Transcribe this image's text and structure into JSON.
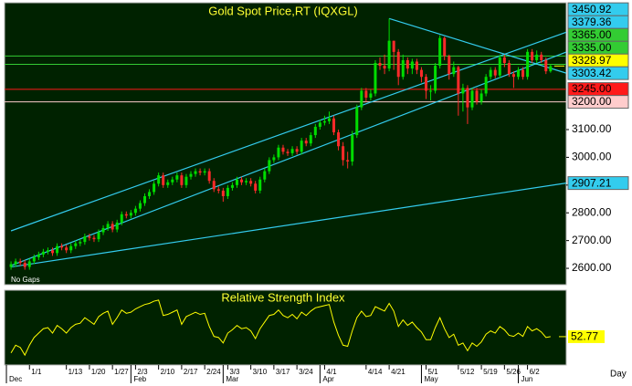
{
  "chart_data": [
    {
      "type": "candlestick",
      "title": "Gold Spot Price,RT (IQXGL)",
      "note": "No Gaps",
      "xlabel": "Day",
      "x": [
        0,
        1,
        2,
        3,
        4,
        5,
        6,
        7,
        8,
        9,
        10,
        11,
        12,
        13,
        14,
        15,
        16,
        17,
        18,
        19,
        20,
        21,
        22,
        23,
        24,
        25,
        26,
        27,
        28,
        29,
        30,
        31,
        32,
        33,
        34,
        35,
        36,
        37,
        38,
        39,
        40,
        41,
        42,
        43,
        44,
        45,
        46,
        47,
        48,
        49,
        50,
        51,
        52,
        53,
        54,
        55,
        56,
        57,
        58,
        59,
        60,
        61,
        62,
        63,
        64,
        65,
        66,
        67,
        68,
        69,
        70,
        71,
        72,
        73,
        74,
        75,
        76,
        77,
        78,
        79,
        80,
        81,
        82,
        83,
        84,
        85,
        86,
        87,
        88,
        89,
        90,
        91,
        92,
        93,
        94,
        95,
        96,
        97,
        98,
        99,
        100,
        101,
        102,
        103,
        104,
        105,
        106,
        107,
        108,
        109,
        110,
        111,
        112,
        113,
        114,
        115,
        116,
        117
      ],
      "open": [
        2605,
        2615,
        2625,
        2620,
        2605,
        2625,
        2640,
        2650,
        2660,
        2665,
        2655,
        2680,
        2675,
        2665,
        2680,
        2690,
        2695,
        2715,
        2710,
        2705,
        2730,
        2745,
        2760,
        2740,
        2765,
        2795,
        2790,
        2800,
        2815,
        2835,
        2860,
        2875,
        2905,
        2935,
        2900,
        2910,
        2920,
        2935,
        2900,
        2930,
        2940,
        2950,
        2945,
        2950,
        2915,
        2885,
        2880,
        2860,
        2890,
        2900,
        2920,
        2910,
        2915,
        2905,
        2880,
        2920,
        2950,
        2990,
        3000,
        3035,
        3020,
        3015,
        3030,
        3020,
        3060,
        3050,
        3080,
        3110,
        3125,
        3130,
        3140,
        3090,
        3040,
        2990,
        2985,
        3080,
        3180,
        3240,
        3215,
        3230,
        3340,
        3330,
        3320,
        3420,
        3380,
        3290,
        3350,
        3320,
        3345,
        3315,
        3290,
        3240,
        3240,
        3330,
        3430,
        3365,
        3300,
        3325,
        3230,
        3250,
        3180,
        3240,
        3200,
        3230,
        3290,
        3315,
        3295,
        3360,
        3340,
        3300,
        3290,
        3315,
        3290,
        3380,
        3350,
        3370,
        3350,
        3310
      ],
      "high": [
        2625,
        2635,
        2635,
        2630,
        2635,
        2650,
        2660,
        2670,
        2675,
        2675,
        2690,
        2690,
        2685,
        2690,
        2700,
        2705,
        2725,
        2725,
        2720,
        2740,
        2755,
        2770,
        2770,
        2775,
        2805,
        2805,
        2810,
        2825,
        2845,
        2870,
        2885,
        2915,
        2945,
        2945,
        2920,
        2930,
        2945,
        2945,
        2940,
        2950,
        2960,
        2960,
        2960,
        2960,
        2925,
        2895,
        2890,
        2900,
        2910,
        2930,
        2930,
        2925,
        2925,
        2915,
        2930,
        2960,
        3000,
        3010,
        3045,
        3045,
        3030,
        3040,
        3040,
        3070,
        3070,
        3090,
        3120,
        3135,
        3150,
        3165,
        3150,
        3100,
        3055,
        3020,
        3095,
        3190,
        3250,
        3250,
        3245,
        3350,
        3360,
        3370,
        3500,
        3420,
        3390,
        3370,
        3360,
        3355,
        3355,
        3325,
        3300,
        3260,
        3340,
        3440,
        3435,
        3370,
        3345,
        3330,
        3265,
        3260,
        3250,
        3250,
        3245,
        3300,
        3325,
        3325,
        3370,
        3370,
        3350,
        3310,
        3325,
        3325,
        3390,
        3390,
        3385,
        3380,
        3360,
        3335
      ],
      "low": [
        2595,
        2605,
        2610,
        2595,
        2595,
        2615,
        2630,
        2640,
        2650,
        2645,
        2645,
        2665,
        2655,
        2655,
        2670,
        2680,
        2685,
        2700,
        2695,
        2695,
        2720,
        2735,
        2730,
        2730,
        2755,
        2780,
        2780,
        2790,
        2805,
        2825,
        2850,
        2865,
        2895,
        2890,
        2890,
        2900,
        2910,
        2890,
        2890,
        2920,
        2930,
        2935,
        2935,
        2905,
        2875,
        2870,
        2840,
        2850,
        2880,
        2890,
        2900,
        2900,
        2895,
        2870,
        2870,
        2910,
        2940,
        2980,
        2990,
        3010,
        3005,
        3005,
        3010,
        3010,
        3040,
        3040,
        3070,
        3100,
        3115,
        3120,
        3080,
        3025,
        2970,
        2960,
        2970,
        3070,
        3170,
        3200,
        3205,
        3220,
        3315,
        3300,
        3310,
        3315,
        3260,
        3280,
        3300,
        3300,
        3300,
        3270,
        3210,
        3205,
        3230,
        3320,
        3350,
        3280,
        3290,
        3150,
        3165,
        3120,
        3170,
        3190,
        3190,
        3220,
        3280,
        3285,
        3285,
        3325,
        3290,
        3250,
        3280,
        3280,
        3280,
        3340,
        3340,
        3340,
        3300,
        3305
      ],
      "close": [
        2615,
        2625,
        2620,
        2605,
        2625,
        2640,
        2650,
        2660,
        2665,
        2655,
        2680,
        2675,
        2665,
        2680,
        2690,
        2695,
        2715,
        2710,
        2705,
        2730,
        2745,
        2760,
        2740,
        2765,
        2795,
        2790,
        2800,
        2815,
        2835,
        2860,
        2875,
        2905,
        2935,
        2900,
        2910,
        2920,
        2935,
        2900,
        2930,
        2940,
        2950,
        2945,
        2950,
        2915,
        2885,
        2880,
        2860,
        2890,
        2900,
        2920,
        2910,
        2915,
        2905,
        2880,
        2920,
        2950,
        2990,
        3000,
        3035,
        3020,
        3015,
        3030,
        3020,
        3060,
        3050,
        3080,
        3110,
        3125,
        3130,
        3140,
        3090,
        3040,
        2990,
        2985,
        3080,
        3180,
        3240,
        3215,
        3230,
        3340,
        3330,
        3320,
        3420,
        3380,
        3290,
        3350,
        3320,
        3345,
        3315,
        3290,
        3240,
        3240,
        3330,
        3430,
        3365,
        3300,
        3325,
        3230,
        3250,
        3180,
        3240,
        3200,
        3230,
        3290,
        3315,
        3295,
        3360,
        3340,
        3300,
        3290,
        3315,
        3290,
        3380,
        3350,
        3370,
        3350,
        3310,
        3328.97
      ],
      "up_color": "#00dd00",
      "down_color": "#ff2a2a",
      "last_color": "#ffff00",
      "xlim": [
        -1.4,
        120.4
      ],
      "ylim": [
        2541,
        3557
      ],
      "yticks": [
        {
          "value": 2600,
          "label": "2600.00"
        },
        {
          "value": 2700,
          "label": "2700.00"
        },
        {
          "value": 2800,
          "label": "2800.00"
        },
        {
          "value": 2900,
          "label": "2900.00"
        },
        {
          "value": 3000,
          "label": "3000.00"
        },
        {
          "value": 3100,
          "label": "3100.00"
        }
      ],
      "xticks": [
        {
          "value": 4,
          "label": "1/1"
        },
        {
          "value": 12,
          "label": "1/13"
        },
        {
          "value": 17,
          "label": "1/20"
        },
        {
          "value": 22,
          "label": "1/27"
        },
        {
          "value": 27,
          "label": "2/3"
        },
        {
          "value": 32,
          "label": "2/10"
        },
        {
          "value": 37,
          "label": "2/17"
        },
        {
          "value": 42,
          "label": "2/24"
        },
        {
          "value": 47,
          "label": "3/3"
        },
        {
          "value": 52,
          "label": "3/10"
        },
        {
          "value": 57,
          "label": "3/17"
        },
        {
          "value": 62,
          "label": "3/24"
        },
        {
          "value": 68,
          "label": "4/1"
        },
        {
          "value": 77,
          "label": "4/14"
        },
        {
          "value": 82,
          "label": "4/21"
        },
        {
          "value": 90,
          "label": "5/1"
        },
        {
          "value": 97,
          "label": "5/12"
        },
        {
          "value": 102,
          "label": "5/19"
        },
        {
          "value": 107,
          "label": "5/26"
        },
        {
          "value": 112,
          "label": "6/2"
        }
      ],
      "month_ticks": [
        {
          "value": -1,
          "label": "Dec"
        },
        {
          "value": 26,
          "label": "Feb"
        },
        {
          "value": 46,
          "label": "Mar"
        },
        {
          "value": 67,
          "label": "Apr"
        },
        {
          "value": 89,
          "label": "May"
        },
        {
          "value": 110,
          "label": "Jun"
        }
      ],
      "levels": [
        {
          "value": 3365,
          "label": "3365.00",
          "color": "#33cc33"
        },
        {
          "value": 3335,
          "label": "3335.00",
          "color": "#33cc33"
        },
        {
          "value": 3245,
          "label": "3245.00",
          "color": "#ff1a1a"
        },
        {
          "value": 3200,
          "label": "3200.00",
          "color": "#ffcccc"
        }
      ],
      "trendline_color": "#33ccee",
      "trendlines": [
        {
          "x": [
            0,
            120.4
          ],
          "y": [
            2735,
            3450.92
          ]
        },
        {
          "x": [
            0,
            120.4
          ],
          "y": [
            2610,
            3379.36
          ]
        },
        {
          "x": [
            82,
            120.4
          ],
          "y": [
            3500,
            3303.42
          ]
        },
        {
          "x": [
            0,
            120.4
          ],
          "y": [
            2605,
            2907.21
          ]
        }
      ]
    },
    {
      "type": "line",
      "title": "Relative Strength Index",
      "color": "#ffff00",
      "x": [
        0,
        1,
        2,
        3,
        4,
        5,
        6,
        7,
        8,
        9,
        10,
        11,
        12,
        13,
        14,
        15,
        16,
        17,
        18,
        19,
        20,
        21,
        22,
        23,
        24,
        25,
        26,
        27,
        28,
        29,
        30,
        31,
        32,
        33,
        34,
        35,
        36,
        37,
        38,
        39,
        40,
        41,
        42,
        43,
        44,
        45,
        46,
        47,
        48,
        49,
        50,
        51,
        52,
        53,
        54,
        55,
        56,
        57,
        58,
        59,
        60,
        61,
        62,
        63,
        64,
        65,
        66,
        67,
        68,
        69,
        70,
        71,
        72,
        73,
        74,
        75,
        76,
        77,
        78,
        79,
        80,
        81,
        82,
        83,
        84,
        85,
        86,
        87,
        88,
        89,
        90,
        91,
        92,
        93,
        94,
        95,
        96,
        97,
        98,
        99,
        100,
        101,
        102,
        103,
        104,
        105,
        106,
        107,
        108,
        109,
        110,
        111,
        112,
        113,
        114,
        115,
        116,
        117
      ],
      "values": [
        38,
        45,
        43,
        36,
        45,
        52,
        56,
        60,
        61,
        56,
        63,
        60,
        56,
        61,
        64,
        65,
        70,
        67,
        64,
        71,
        74,
        76,
        64,
        70,
        77,
        74,
        75,
        78,
        80,
        82,
        83,
        85,
        86,
        72,
        73,
        75,
        77,
        64,
        71,
        73,
        75,
        73,
        74,
        62,
        53,
        52,
        47,
        56,
        59,
        63,
        60,
        61,
        58,
        51,
        60,
        66,
        72,
        73,
        77,
        72,
        70,
        73,
        69,
        75,
        72,
        76,
        79,
        80,
        81,
        82,
        66,
        54,
        45,
        44,
        58,
        70,
        76,
        71,
        72,
        80,
        78,
        76,
        83,
        76,
        62,
        68,
        63,
        66,
        61,
        57,
        50,
        50,
        61,
        70,
        60,
        52,
        55,
        45,
        47,
        40,
        47,
        44,
        48,
        55,
        58,
        56,
        62,
        59,
        54,
        53,
        56,
        53,
        62,
        58,
        60,
        57,
        52,
        52.77
      ],
      "xlim": [
        -1.4,
        120.4
      ],
      "ylim": [
        27,
        95
      ]
    }
  ]
}
